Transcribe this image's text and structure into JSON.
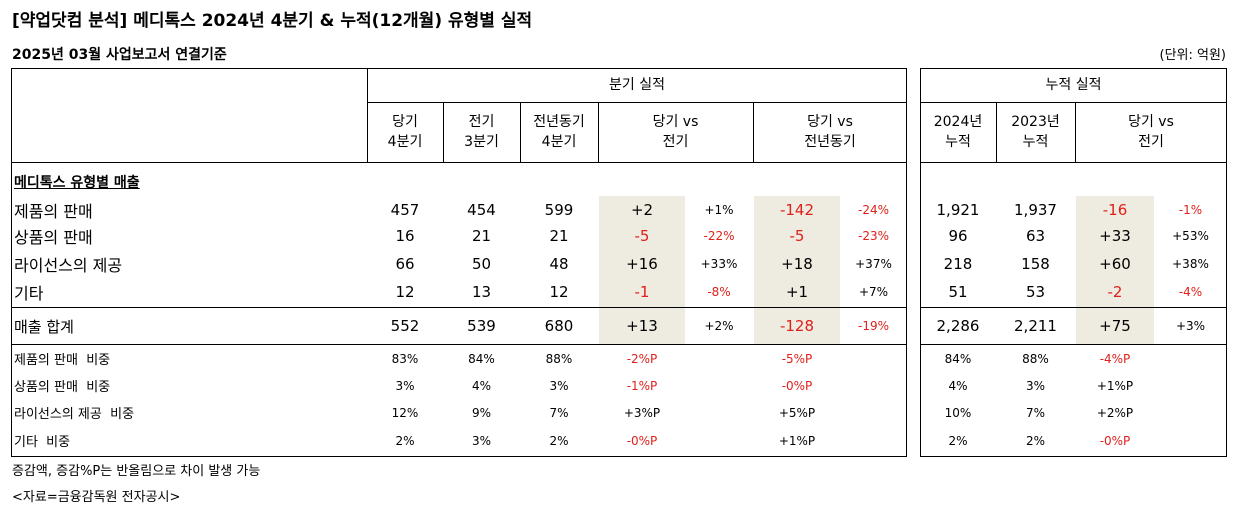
{
  "title": "[약업닷컴 분석] 메디톡스 2024년 4분기 & 누적(12개월) 유형별 실적",
  "subtitle": "2025년 03월 사업보고서 연결기준",
  "unit": "(단위: 억원)",
  "groups": {
    "quarter": "분기 실적",
    "cumulative": "누적 실적"
  },
  "headers": {
    "q_cur": "당기\n4분기",
    "q_prev": "전기\n3분기",
    "q_yoy": "전년동기\n4분기",
    "q_vs_prev": "당기 vs\n전기",
    "q_vs_yoy": "당기 vs\n전년동기",
    "c_2024": "2024년\n누적",
    "c_2023": "2023년\n누적",
    "c_vs": "당기 vs\n전기"
  },
  "section_label": "메디톡스 유형별 매출",
  "rows": [
    {
      "label": "제품의 판매",
      "q_cur": "457",
      "q_prev": "454",
      "q_yoy": "599",
      "d1": "+2",
      "d1p": "+1%",
      "d2": "-142",
      "d2p": "-24%",
      "c24": "1,921",
      "c23": "1,937",
      "d3": "-16",
      "d3p": "-1%"
    },
    {
      "label": "상품의 판매",
      "q_cur": "16",
      "q_prev": "21",
      "q_yoy": "21",
      "d1": "-5",
      "d1p": "-22%",
      "d2": "-5",
      "d2p": "-23%",
      "c24": "96",
      "c23": "63",
      "d3": "+33",
      "d3p": "+53%"
    },
    {
      "label": "라이선스의 제공",
      "q_cur": "66",
      "q_prev": "50",
      "q_yoy": "48",
      "d1": "+16",
      "d1p": "+33%",
      "d2": "+18",
      "d2p": "+37%",
      "c24": "218",
      "c23": "158",
      "d3": "+60",
      "d3p": "+38%"
    },
    {
      "label": "기타",
      "q_cur": "12",
      "q_prev": "13",
      "q_yoy": "12",
      "d1": "-1",
      "d1p": "-8%",
      "d2": "+1",
      "d2p": "+7%",
      "c24": "51",
      "c23": "53",
      "d3": "-2",
      "d3p": "-4%"
    }
  ],
  "total": {
    "label": "매출 합계",
    "q_cur": "552",
    "q_prev": "539",
    "q_yoy": "680",
    "d1": "+13",
    "d1p": "+2%",
    "d2": "-128",
    "d2p": "-19%",
    "c24": "2,286",
    "c23": "2,211",
    "d3": "+75",
    "d3p": "+3%"
  },
  "ratios": [
    {
      "label": "제품의 판매  비중",
      "q_cur": "83%",
      "q_prev": "84%",
      "q_yoy": "88%",
      "d1": "-2%P",
      "d2": "-5%P",
      "c24": "84%",
      "c23": "88%",
      "d3": "-4%P"
    },
    {
      "label": "상품의 판매  비중",
      "q_cur": "3%",
      "q_prev": "4%",
      "q_yoy": "3%",
      "d1": "-1%P",
      "d2": "-0%P",
      "c24": "4%",
      "c23": "3%",
      "d3": "+1%P"
    },
    {
      "label": "라이선스의 제공  비중",
      "q_cur": "12%",
      "q_prev": "9%",
      "q_yoy": "7%",
      "d1": "+3%P",
      "d2": "+5%P",
      "c24": "10%",
      "c23": "7%",
      "d3": "+2%P"
    },
    {
      "label": "기타  비중",
      "q_cur": "2%",
      "q_prev": "3%",
      "q_yoy": "2%",
      "d1": "-0%P",
      "d2": "+1%P",
      "c24": "2%",
      "c23": "2%",
      "d3": "-0%P"
    }
  ],
  "notes": [
    "증감액, 증감%P는 반올림으로 차이 발생 가능",
    "<자료=금융감독원 전자공시>"
  ],
  "colors": {
    "negative": "#e0201a",
    "shade": "#eeebe0"
  }
}
